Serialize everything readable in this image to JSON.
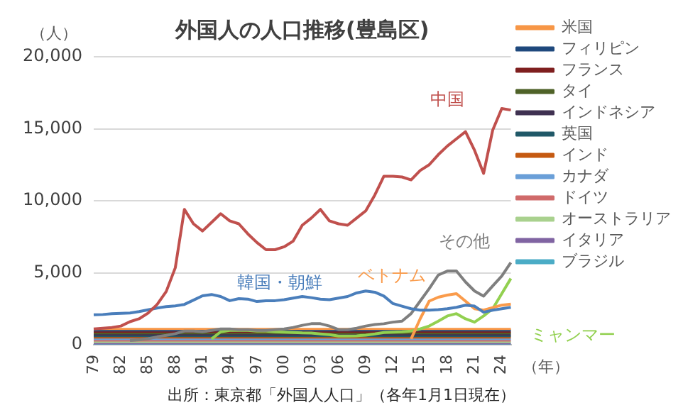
{
  "chart_data": {
    "type": "line",
    "title": "外国人の人口推移(豊島区)",
    "ylabel": "（人）",
    "xlabel": "（年）",
    "categories": [
      "79",
      null,
      null,
      "82",
      null,
      null,
      "85",
      null,
      null,
      "88",
      null,
      null,
      "91",
      null,
      null,
      "94",
      null,
      null,
      "97",
      null,
      null,
      "00",
      null,
      null,
      "03",
      null,
      null,
      "06",
      null,
      null,
      "09",
      null,
      null,
      "12",
      null,
      null,
      "15",
      null,
      null,
      "18",
      null,
      null,
      "21",
      null,
      null,
      "24",
      null
    ],
    "ylim": [
      0,
      20000
    ],
    "yticks": [
      0,
      {
        "value": 5000,
        "label": "5,000"
      },
      {
        "value": 10000,
        "label": "10,000"
      },
      {
        "value": 15000,
        "label": "15,000"
      },
      {
        "value": 20000,
        "label": "20,000"
      }
    ],
    "grid": "y",
    "legend": "right",
    "marker": "none",
    "line_style": "solid",
    "series": [
      {
        "color": "#c0504d",
        "values": [
          1100,
          1150,
          1200,
          1300,
          1600,
          1800,
          2200,
          2800,
          3700,
          5350,
          9400,
          8400,
          7900,
          8500,
          9100,
          8600,
          8400,
          7700,
          7100,
          6600,
          6600,
          6800,
          7200,
          8300,
          8800,
          9400,
          8600,
          8400,
          8300,
          8800,
          9300,
          10400,
          11700,
          11700,
          11650,
          11450,
          12100,
          12500,
          13200,
          13800,
          14300,
          14800,
          13500,
          11900,
          14900,
          16400,
          16300
        ]
      },
      {
        "color": "#4a7ebb",
        "values": [
          2080,
          2100,
          2150,
          2180,
          2200,
          2300,
          2430,
          2550,
          2650,
          2700,
          2800,
          3100,
          3400,
          3490,
          3350,
          3060,
          3200,
          3170,
          3000,
          3050,
          3060,
          3130,
          3240,
          3350,
          3270,
          3170,
          3130,
          3240,
          3350,
          3600,
          3730,
          3650,
          3380,
          2860,
          2680,
          2500,
          2400,
          2400,
          2440,
          2500,
          2600,
          2750,
          2680,
          2260,
          2400,
          2500,
          2600
        ]
      },
      {
        "color": "#7f7f7f",
        "values": [
          null,
          null,
          null,
          null,
          300,
          350,
          420,
          550,
          650,
          770,
          950,
          950,
          900,
          1000,
          1100,
          1100,
          1050,
          1050,
          1000,
          1000,
          1050,
          1100,
          1200,
          1350,
          1460,
          1460,
          1300,
          1050,
          1050,
          1150,
          1300,
          1400,
          1460,
          1570,
          1640,
          2160,
          3030,
          3900,
          4840,
          5120,
          5120,
          4360,
          3730,
          3380,
          4080,
          4770,
          5710
        ]
      },
      {
        "color": "#fa9b4b",
        "values": [
          null,
          null,
          null,
          null,
          null,
          null,
          null,
          null,
          null,
          null,
          null,
          null,
          null,
          null,
          null,
          null,
          null,
          null,
          null,
          null,
          null,
          null,
          null,
          null,
          null,
          null,
          null,
          null,
          null,
          null,
          null,
          null,
          null,
          null,
          null,
          400,
          1800,
          3030,
          3300,
          3450,
          3550,
          3030,
          2500,
          2400,
          2580,
          2750,
          2820
        ]
      },
      {
        "color": "#92d050",
        "values": [
          null,
          null,
          null,
          null,
          null,
          null,
          null,
          null,
          null,
          null,
          null,
          null,
          null,
          400,
          900,
          1000,
          1000,
          1000,
          950,
          950,
          900,
          880,
          850,
          820,
          810,
          750,
          700,
          600,
          600,
          620,
          670,
          750,
          850,
          880,
          900,
          950,
          1100,
          1300,
          1640,
          2000,
          2160,
          1800,
          1570,
          2000,
          2500,
          3550,
          4600
        ]
      },
      {
        "name": "米国",
        "color": "#f79646",
        "values": [
          1100,
          1100,
          1100,
          1100,
          1100,
          1100,
          1100,
          1100,
          1100,
          1100,
          1100,
          1100,
          1100,
          1100,
          1100,
          1100,
          1100,
          1100,
          1100,
          1100,
          1100,
          1100,
          1100,
          1100,
          1100,
          1100,
          1100,
          1100,
          1100,
          1100,
          1100,
          1100,
          1100,
          1100,
          1100,
          1100,
          1100,
          1100,
          1100,
          1100,
          1100,
          1100,
          1100,
          1100,
          1100,
          1100,
          1100
        ]
      },
      {
        "name": "フィリピン",
        "color": "#1f497d",
        "values": [
          1000,
          1000,
          1000,
          1000,
          1000,
          1000,
          1000,
          1000,
          1000,
          1000,
          1000,
          1000,
          1000,
          1000,
          1000,
          1000,
          1000,
          1000,
          1000,
          1000,
          1000,
          1000,
          1000,
          1000,
          1000,
          1000,
          1000,
          1000,
          1000,
          1000,
          1000,
          1000,
          1000,
          1000,
          1000,
          1000,
          1000,
          1000,
          1000,
          1000,
          1000,
          1000,
          1000,
          1000,
          1000,
          1000,
          1000
        ]
      },
      {
        "name": "フランス",
        "color": "#7f1f1f",
        "values": [
          900,
          900,
          900,
          900,
          900,
          900,
          900,
          900,
          900,
          900,
          900,
          900,
          900,
          900,
          900,
          900,
          900,
          900,
          900,
          900,
          900,
          900,
          900,
          900,
          900,
          900,
          900,
          900,
          900,
          900,
          900,
          900,
          900,
          900,
          900,
          900,
          900,
          900,
          900,
          900,
          900,
          900,
          900,
          900,
          900,
          900,
          900
        ]
      },
      {
        "name": "タイ",
        "color": "#4f6228",
        "values": [
          800,
          800,
          800,
          800,
          800,
          800,
          800,
          800,
          800,
          800,
          800,
          800,
          800,
          800,
          800,
          800,
          800,
          800,
          800,
          800,
          800,
          800,
          800,
          800,
          800,
          800,
          800,
          800,
          800,
          800,
          800,
          800,
          800,
          800,
          800,
          800,
          800,
          800,
          800,
          800,
          800,
          800,
          800,
          800,
          800,
          800,
          800
        ]
      },
      {
        "name": "インドネシア",
        "color": "#3f3151",
        "values": [
          700,
          700,
          700,
          700,
          700,
          700,
          700,
          700,
          700,
          700,
          700,
          700,
          700,
          700,
          700,
          700,
          700,
          700,
          700,
          700,
          700,
          700,
          700,
          700,
          700,
          700,
          700,
          700,
          700,
          700,
          700,
          700,
          700,
          700,
          700,
          700,
          700,
          700,
          700,
          700,
          700,
          700,
          700,
          700,
          700,
          700,
          700
        ]
      },
      {
        "name": "英国",
        "color": "#215968",
        "values": [
          600,
          600,
          600,
          600,
          600,
          600,
          600,
          600,
          600,
          600,
          600,
          600,
          600,
          600,
          600,
          600,
          600,
          600,
          600,
          600,
          600,
          600,
          600,
          600,
          600,
          600,
          600,
          600,
          600,
          600,
          600,
          600,
          600,
          600,
          600,
          600,
          600,
          600,
          600,
          600,
          600,
          600,
          600,
          600,
          600,
          600,
          600
        ]
      },
      {
        "name": "インド",
        "color": "#c55a11",
        "values": [
          500,
          500,
          500,
          500,
          500,
          500,
          500,
          500,
          500,
          500,
          500,
          500,
          500,
          500,
          500,
          500,
          500,
          500,
          500,
          500,
          500,
          500,
          500,
          500,
          500,
          500,
          500,
          500,
          500,
          500,
          500,
          500,
          500,
          500,
          500,
          500,
          500,
          500,
          500,
          500,
          500,
          500,
          500,
          500,
          500,
          500,
          500
        ]
      },
      {
        "name": "カナダ",
        "color": "#6a9fd8",
        "values": [
          400,
          400,
          400,
          400,
          400,
          400,
          400,
          400,
          400,
          400,
          400,
          400,
          400,
          400,
          400,
          400,
          400,
          400,
          400,
          400,
          400,
          400,
          400,
          400,
          400,
          400,
          400,
          400,
          400,
          400,
          400,
          400,
          400,
          400,
          400,
          400,
          400,
          400,
          400,
          400,
          400,
          400,
          400,
          400,
          400,
          400,
          400
        ]
      },
      {
        "name": "ドイツ",
        "color": "#d06b6b",
        "values": [
          300,
          300,
          300,
          300,
          300,
          300,
          300,
          300,
          300,
          300,
          300,
          300,
          300,
          300,
          300,
          300,
          300,
          300,
          300,
          300,
          300,
          300,
          300,
          300,
          300,
          300,
          300,
          300,
          300,
          300,
          300,
          300,
          300,
          300,
          300,
          300,
          300,
          300,
          300,
          300,
          300,
          300,
          300,
          300,
          300,
          300,
          300
        ]
      },
      {
        "name": "オーストラリア",
        "color": "#a9d18e",
        "values": [
          200,
          200,
          200,
          200,
          200,
          200,
          200,
          200,
          200,
          200,
          200,
          200,
          200,
          200,
          200,
          200,
          200,
          200,
          200,
          200,
          200,
          200,
          200,
          200,
          200,
          200,
          200,
          200,
          200,
          200,
          200,
          200,
          200,
          200,
          200,
          200,
          200,
          200,
          200,
          200,
          200,
          200,
          200,
          200,
          200,
          200,
          200
        ]
      },
      {
        "name": "イタリア",
        "color": "#8064a2",
        "values": [
          100,
          100,
          100,
          100,
          100,
          100,
          100,
          100,
          100,
          100,
          100,
          100,
          100,
          100,
          100,
          100,
          100,
          100,
          100,
          100,
          100,
          100,
          100,
          100,
          100,
          100,
          100,
          100,
          100,
          100,
          100,
          100,
          100,
          100,
          100,
          100,
          100,
          100,
          100,
          100,
          100,
          100,
          100,
          100,
          100,
          100,
          100
        ]
      },
      {
        "name": "ブラジル",
        "color": "#4bacc6",
        "values": [
          0,
          0,
          0,
          0,
          0,
          0,
          0,
          0,
          0,
          0,
          0,
          0,
          0,
          0,
          0,
          0,
          0,
          0,
          0,
          0,
          0,
          0,
          0,
          0,
          0,
          0,
          0,
          0,
          0,
          0,
          0,
          0,
          0,
          0,
          0,
          0,
          0,
          0,
          0,
          0,
          0,
          0,
          0,
          0,
          0,
          0,
          0
        ]
      }
    ],
    "annotations": [
      {
        "text": "中国",
        "x": "18",
        "y": 13800
      },
      {
        "text": "韓国・朝鮮",
        "x": "94",
        "y": 3060
      },
      {
        "text": "その他",
        "x": "18",
        "y": 5120
      },
      {
        "text": "ベトナム",
        "x": "15",
        "y": 1800
      },
      {
        "text": "ミャンマー",
        "x": "24",
        "y": 3550
      },
      "出所：東京都「外国人人口」（各年1月1日現在）"
    ]
  }
}
